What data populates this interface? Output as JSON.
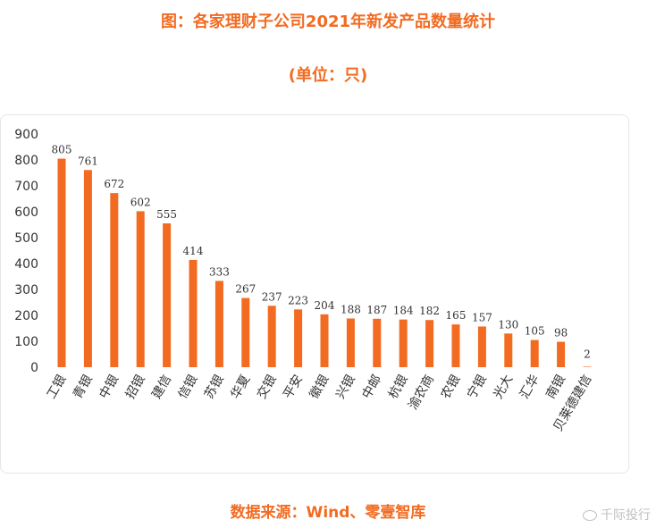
{
  "title": "图：各家理财子公司2021年新发产品数量统计",
  "subtitle": "(单位：只)",
  "source": "数据来源：Wind、零壹智库",
  "watermark": "千际投行",
  "colors": {
    "bar": "#f26b21",
    "text": "#f26b21",
    "axis": "#333333"
  },
  "chart_data": {
    "type": "bar",
    "categories": [
      "工银",
      "青银",
      "中银",
      "招银",
      "建信",
      "信银",
      "苏银",
      "华夏",
      "交银",
      "平安",
      "徽银",
      "兴银",
      "中邮",
      "杭银",
      "渝农商",
      "农银",
      "宁银",
      "光大",
      "汇华",
      "南银",
      "贝莱德建信"
    ],
    "values": [
      805,
      761,
      672,
      602,
      555,
      414,
      333,
      267,
      237,
      223,
      204,
      188,
      187,
      184,
      182,
      165,
      157,
      130,
      105,
      98,
      2
    ],
    "ylim": [
      0,
      900
    ],
    "yticks": [
      0,
      100,
      200,
      300,
      400,
      500,
      600,
      700,
      800,
      900
    ],
    "grid": false,
    "legend": false
  }
}
